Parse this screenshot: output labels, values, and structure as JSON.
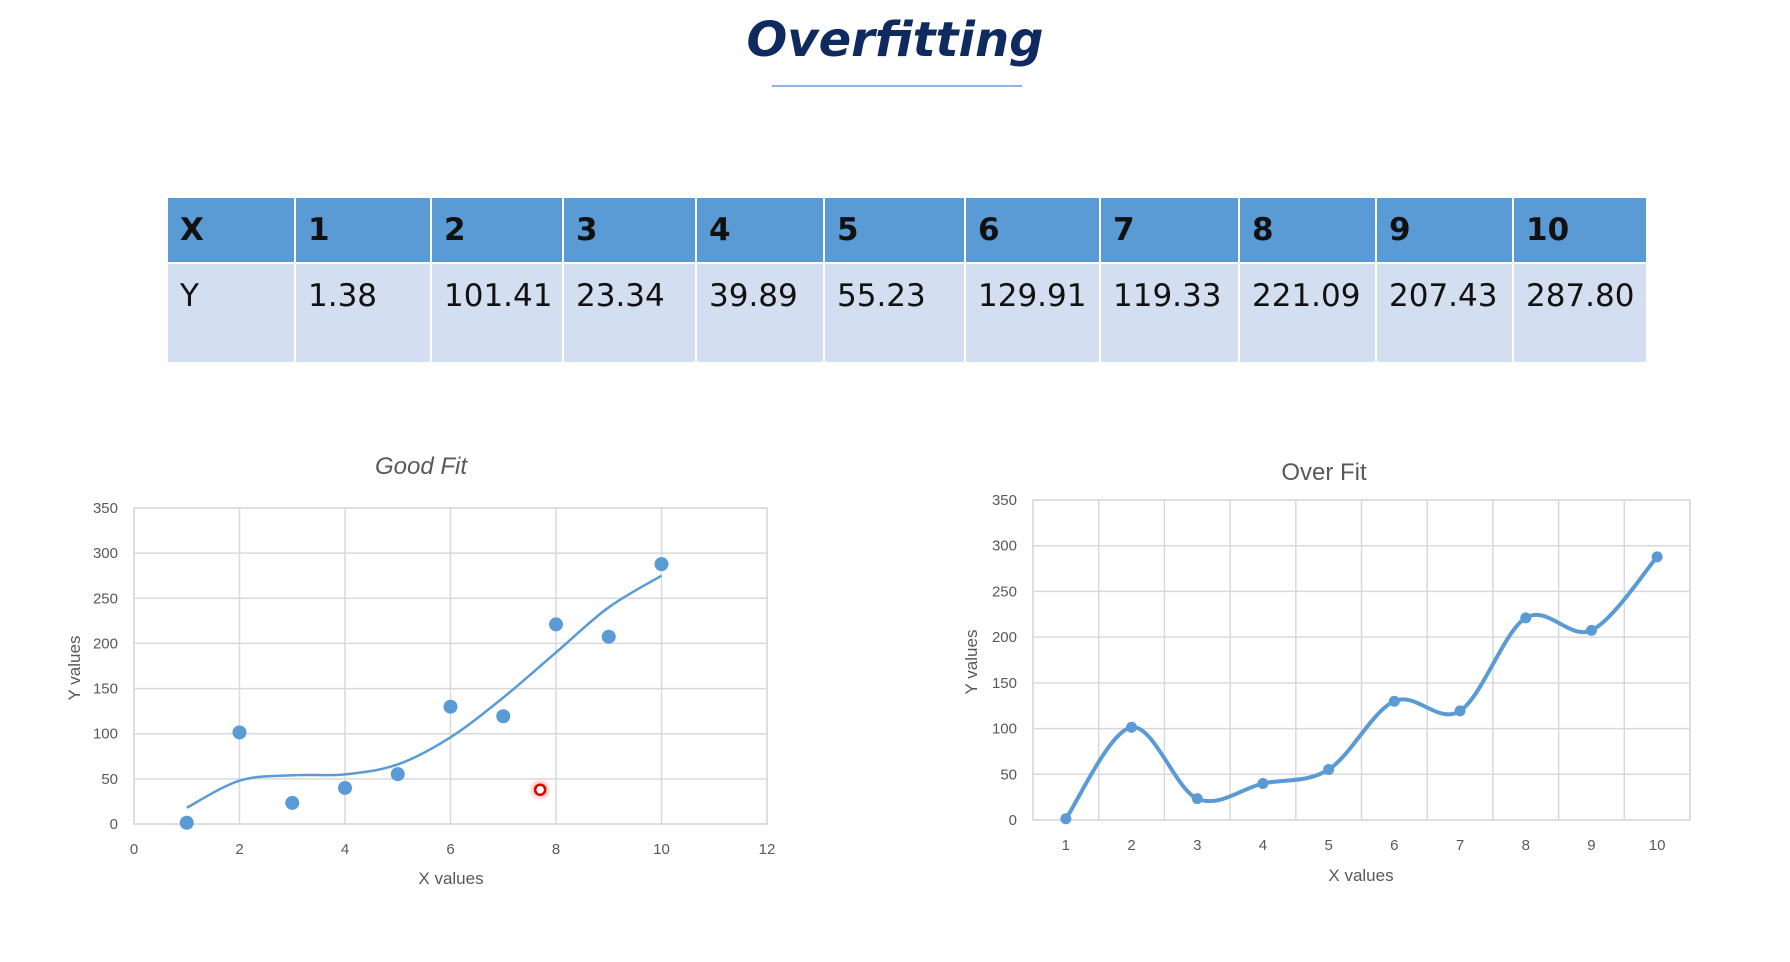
{
  "page": {
    "title": "Overfitting"
  },
  "table": {
    "header": [
      "X",
      "1",
      "2",
      "3",
      "4",
      "5",
      "6",
      "7",
      "8",
      "9",
      "10"
    ],
    "row": [
      "Y",
      "1.38",
      "101.41",
      "23.34",
      "39.89",
      "55.23",
      "129.91",
      "119.33",
      "221.09",
      "207.43",
      "287.80"
    ]
  },
  "colors": {
    "accent": "#5b9bd5",
    "header_fill": "#5b9bd5",
    "row_fill": "#d3dff0",
    "title": "#0e2a5e",
    "highlight": "#e00000"
  },
  "chart_data": [
    {
      "type": "scatter",
      "title": "Good Fit",
      "xlabel": "X values",
      "ylabel": "Y values",
      "xlim": [
        0,
        12
      ],
      "ylim": [
        0,
        350
      ],
      "x_ticks": [
        "0",
        "2",
        "4",
        "6",
        "8",
        "10",
        "12"
      ],
      "y_ticks": [
        "0",
        "50",
        "100",
        "150",
        "200",
        "250",
        "300",
        "350"
      ],
      "grid": true,
      "series": [
        {
          "x": [
            1,
            2,
            3,
            4,
            5,
            6,
            7,
            8,
            9,
            10
          ],
          "y": [
            1.38,
            101.41,
            23.34,
            39.89,
            55.23,
            129.91,
            119.33,
            221.09,
            207.43,
            287.8
          ]
        }
      ],
      "trendline": {
        "x": [
          1,
          2,
          3,
          4,
          5,
          6,
          7,
          8,
          9,
          10
        ],
        "y": [
          18,
          48,
          54,
          55,
          66,
          96,
          140,
          190,
          240,
          275
        ]
      },
      "highlight_point": {
        "x": 7.7,
        "y": 38
      }
    },
    {
      "type": "line",
      "title": "Over Fit",
      "xlabel": "X values",
      "ylabel": "Y values",
      "ylim": [
        0,
        350
      ],
      "categories": [
        "1",
        "2",
        "3",
        "4",
        "5",
        "6",
        "7",
        "8",
        "9",
        "10"
      ],
      "y_ticks": [
        "0",
        "50",
        "100",
        "150",
        "200",
        "250",
        "300",
        "350"
      ],
      "grid": true,
      "series": [
        {
          "values": [
            1.38,
            101.41,
            23.34,
            39.89,
            55.23,
            129.91,
            119.33,
            221.09,
            207.43,
            287.8
          ]
        }
      ]
    }
  ]
}
